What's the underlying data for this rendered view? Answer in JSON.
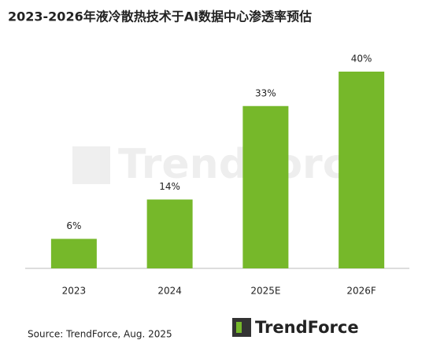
{
  "chart_data": {
    "type": "bar",
    "title": "2023-2026年液冷散热技术于AI数据中心渗透率预估",
    "categories": [
      "2023",
      "2024",
      "2025E",
      "2026F"
    ],
    "values": [
      6,
      14,
      33,
      40
    ],
    "value_labels": [
      "6%",
      "14%",
      "33%",
      "40%"
    ],
    "color": "#76b82a",
    "source": "Source: TrendForce, Aug. 2025",
    "logo": "TrendForce"
  }
}
